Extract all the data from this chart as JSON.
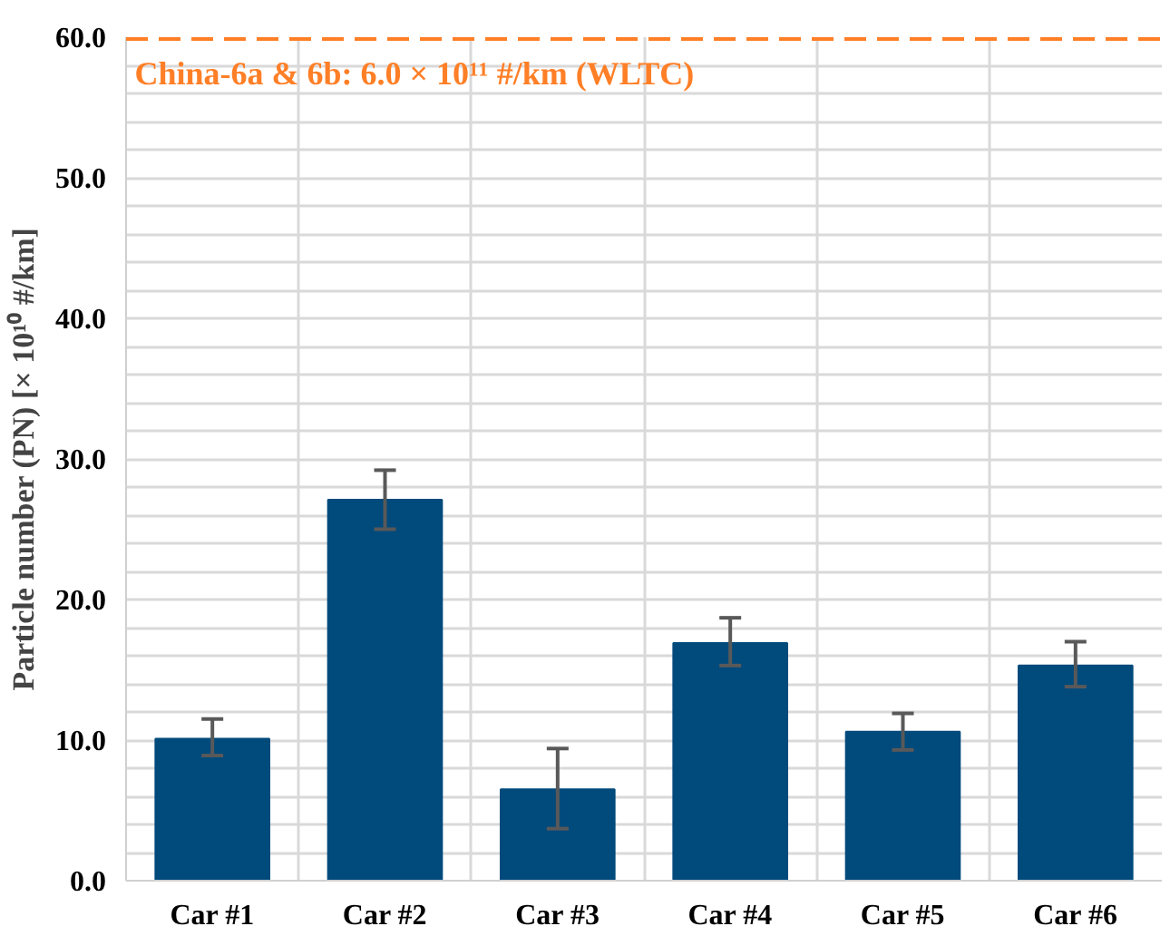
{
  "chart_data": {
    "type": "bar",
    "ylabel": "Particle number (PN) [× 10¹⁰ #/km]",
    "categories": [
      "Car #1",
      "Car #2",
      "Car #3",
      "Car #4",
      "Car #5",
      "Car #6"
    ],
    "values": [
      10.1,
      27.1,
      6.5,
      16.9,
      10.6,
      15.3
    ],
    "errors": [
      [
        8.9,
        11.5
      ],
      [
        25.0,
        29.2
      ],
      [
        3.7,
        9.4
      ],
      [
        15.3,
        18.7
      ],
      [
        9.3,
        11.9
      ],
      [
        13.8,
        17.0
      ]
    ],
    "color": "#004a7c",
    "ylim": [
      0,
      60
    ],
    "yticks": [
      {
        "value": 0,
        "label": "0.0"
      },
      {
        "value": 2,
        "label": null
      },
      {
        "value": 4,
        "label": null
      },
      {
        "value": 6,
        "label": null
      },
      {
        "value": 8,
        "label": null
      },
      {
        "value": 10,
        "label": "10.0"
      },
      {
        "value": 12,
        "label": null
      },
      {
        "value": 14,
        "label": null
      },
      {
        "value": 16,
        "label": null
      },
      {
        "value": 18,
        "label": null
      },
      {
        "value": 20,
        "label": "20.0"
      },
      {
        "value": 22,
        "label": null
      },
      {
        "value": 24,
        "label": null
      },
      {
        "value": 26,
        "label": null
      },
      {
        "value": 28,
        "label": null
      },
      {
        "value": 30,
        "label": "30.0"
      },
      {
        "value": 32,
        "label": null
      },
      {
        "value": 34,
        "label": null
      },
      {
        "value": 36,
        "label": null
      },
      {
        "value": 38,
        "label": null
      },
      {
        "value": 40,
        "label": "40.0"
      },
      {
        "value": 42,
        "label": null
      },
      {
        "value": 44,
        "label": null
      },
      {
        "value": 46,
        "label": null
      },
      {
        "value": 48,
        "label": null
      },
      {
        "value": 50,
        "label": "50.0"
      },
      {
        "value": 52,
        "label": null
      },
      {
        "value": 54,
        "label": null
      },
      {
        "value": 56,
        "label": null
      },
      {
        "value": 58,
        "label": null
      },
      {
        "value": 60,
        "label": "60.0"
      }
    ],
    "grid": true,
    "annotations": [
      "China-6a & 6b: 6.0 × 10¹¹ #/km (WLTC)"
    ],
    "ref_lines": [
      {
        "axis": "y",
        "value": 60,
        "color": "#ff7f27",
        "line_style": "dashed"
      }
    ]
  }
}
